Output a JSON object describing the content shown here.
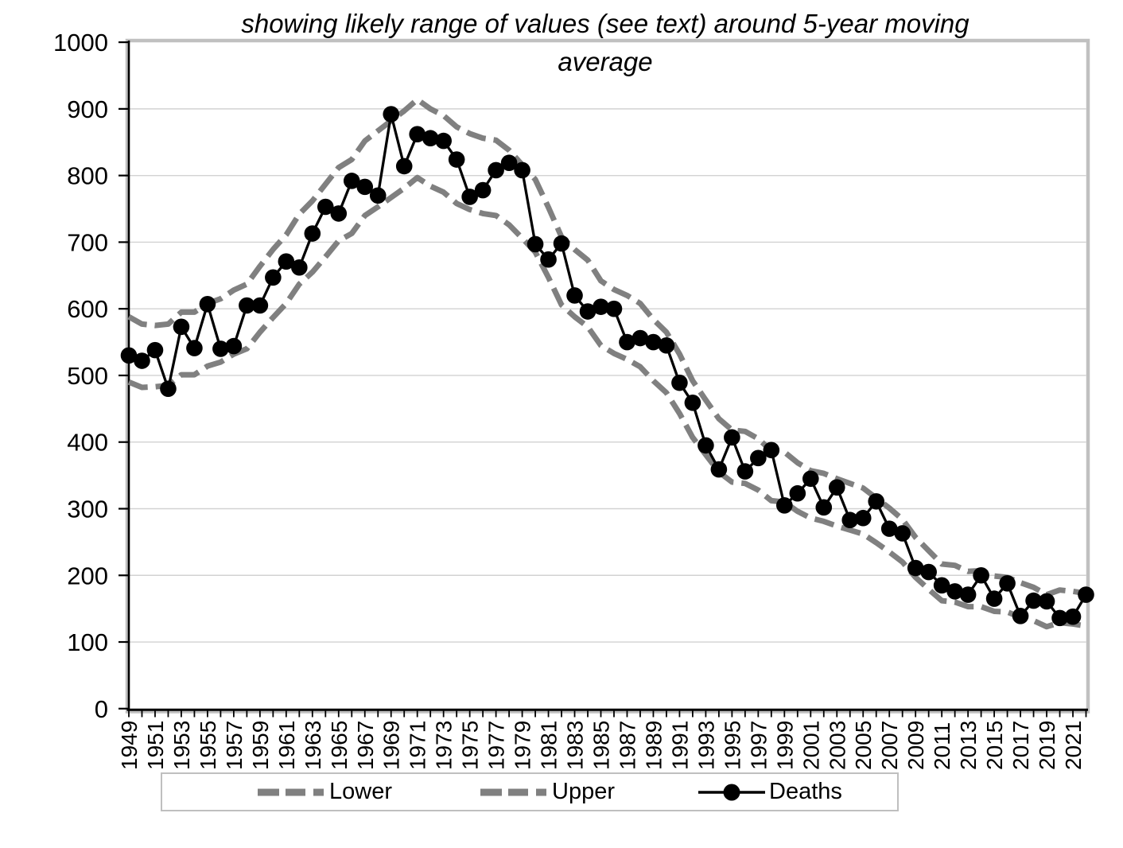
{
  "title": {
    "line1": "showing likely range of values (see text) around 5-year moving",
    "line2": "average"
  },
  "legend": {
    "items": [
      {
        "label": "Lower",
        "swatch": "gray-dashed-line"
      },
      {
        "label": "Upper",
        "swatch": "gray-dashed-line"
      },
      {
        "label": "Deaths",
        "swatch": "black-line-circle-marker"
      }
    ]
  },
  "colors": {
    "band": "#808080",
    "deaths": "#000000",
    "gridline": "#d2d2d2",
    "plot_border": "#c0c0c0",
    "axis": "#000000",
    "legend_border": "#bfbfbf",
    "background": "#ffffff",
    "text": "#000000"
  },
  "y_axis": {
    "ticks": [
      0,
      100,
      200,
      300,
      400,
      500,
      600,
      700,
      800,
      900,
      1000
    ]
  },
  "x_axis": {
    "tick_labels": [
      "1949",
      "1951",
      "1953",
      "1955",
      "1957",
      "1959",
      "1961",
      "1963",
      "1965",
      "1967",
      "1969",
      "1971",
      "1973",
      "1975",
      "1977",
      "1979",
      "1981",
      "1983",
      "1985",
      "1987",
      "1989",
      "1991",
      "1993",
      "1995",
      "1997",
      "1999",
      "2001",
      "2003",
      "2005",
      "2007",
      "2009",
      "2011",
      "2013",
      "2015",
      "2017",
      "2019",
      "2021"
    ]
  },
  "chart_data": {
    "type": "line",
    "title": "showing likely range of values (see text) around 5-year moving average",
    "xlabel": "",
    "ylabel": "",
    "ylim": [
      0,
      1000
    ],
    "grid": "horizontal",
    "legend_position": "bottom",
    "x": [
      1949,
      1950,
      1951,
      1952,
      1953,
      1954,
      1955,
      1956,
      1957,
      1958,
      1959,
      1960,
      1961,
      1962,
      1963,
      1964,
      1965,
      1966,
      1967,
      1968,
      1969,
      1970,
      1971,
      1972,
      1973,
      1974,
      1975,
      1976,
      1977,
      1978,
      1979,
      1980,
      1981,
      1982,
      1983,
      1984,
      1985,
      1986,
      1987,
      1988,
      1989,
      1990,
      1991,
      1992,
      1993,
      1994,
      1995,
      1996,
      1997,
      1998,
      1999,
      2000,
      2001,
      2002,
      2003,
      2004,
      2005,
      2006,
      2007,
      2008,
      2009,
      2010,
      2011,
      2012,
      2013,
      2014,
      2015,
      2016,
      2017,
      2018,
      2019,
      2020,
      2021,
      2022
    ],
    "series": [
      {
        "name": "Lower",
        "style": "dashed-gray",
        "values": [
          490,
          482,
          483,
          485,
          501,
          501,
          514,
          520,
          532,
          540,
          565,
          587,
          608,
          637,
          655,
          678,
          702,
          713,
          740,
          753,
          767,
          781,
          797,
          784,
          775,
          758,
          749,
          743,
          740,
          726,
          706,
          685,
          647,
          606,
          588,
          573,
          545,
          533,
          524,
          513,
          492,
          474,
          443,
          407,
          381,
          355,
          340,
          338,
          328,
          312,
          310,
          296,
          286,
          281,
          274,
          268,
          262,
          249,
          235,
          220,
          197,
          179,
          162,
          160,
          153,
          153,
          146,
          145,
          137,
          132,
          123,
          129,
          127,
          124
        ]
      },
      {
        "name": "Upper",
        "style": "dashed-gray",
        "values": [
          588,
          577,
          575,
          577,
          595,
          595,
          608,
          615,
          628,
          637,
          664,
          689,
          711,
          742,
          762,
          787,
          812,
          824,
          852,
          867,
          882,
          897,
          914,
          900,
          890,
          873,
          863,
          856,
          853,
          838,
          816,
          794,
          752,
          708,
          689,
          673,
          642,
          629,
          620,
          608,
          584,
          565,
          532,
          492,
          463,
          435,
          418,
          416,
          405,
          387,
          385,
          369,
          357,
          353,
          345,
          338,
          331,
          316,
          301,
          284,
          257,
          237,
          217,
          215,
          206,
          207,
          199,
          197,
          189,
          182,
          171,
          178,
          176,
          173
        ]
      },
      {
        "name": "Deaths",
        "style": "black-line-circle-markers",
        "values": [
          530,
          522,
          538,
          480,
          573,
          541,
          607,
          540,
          544,
          605,
          605,
          647,
          671,
          662,
          713,
          753,
          743,
          792,
          783,
          770,
          892,
          814,
          862,
          856,
          852,
          824,
          768,
          778,
          808,
          819,
          808,
          697,
          674,
          698,
          620,
          596,
          603,
          600,
          550,
          556,
          550,
          545,
          489,
          459,
          395,
          359,
          407,
          356,
          376,
          388,
          305,
          323,
          345,
          302,
          332,
          283,
          286,
          311,
          270,
          263,
          211,
          205,
          185,
          176,
          171,
          200,
          165,
          188,
          139,
          162,
          161,
          136,
          138,
          171
        ]
      }
    ]
  }
}
